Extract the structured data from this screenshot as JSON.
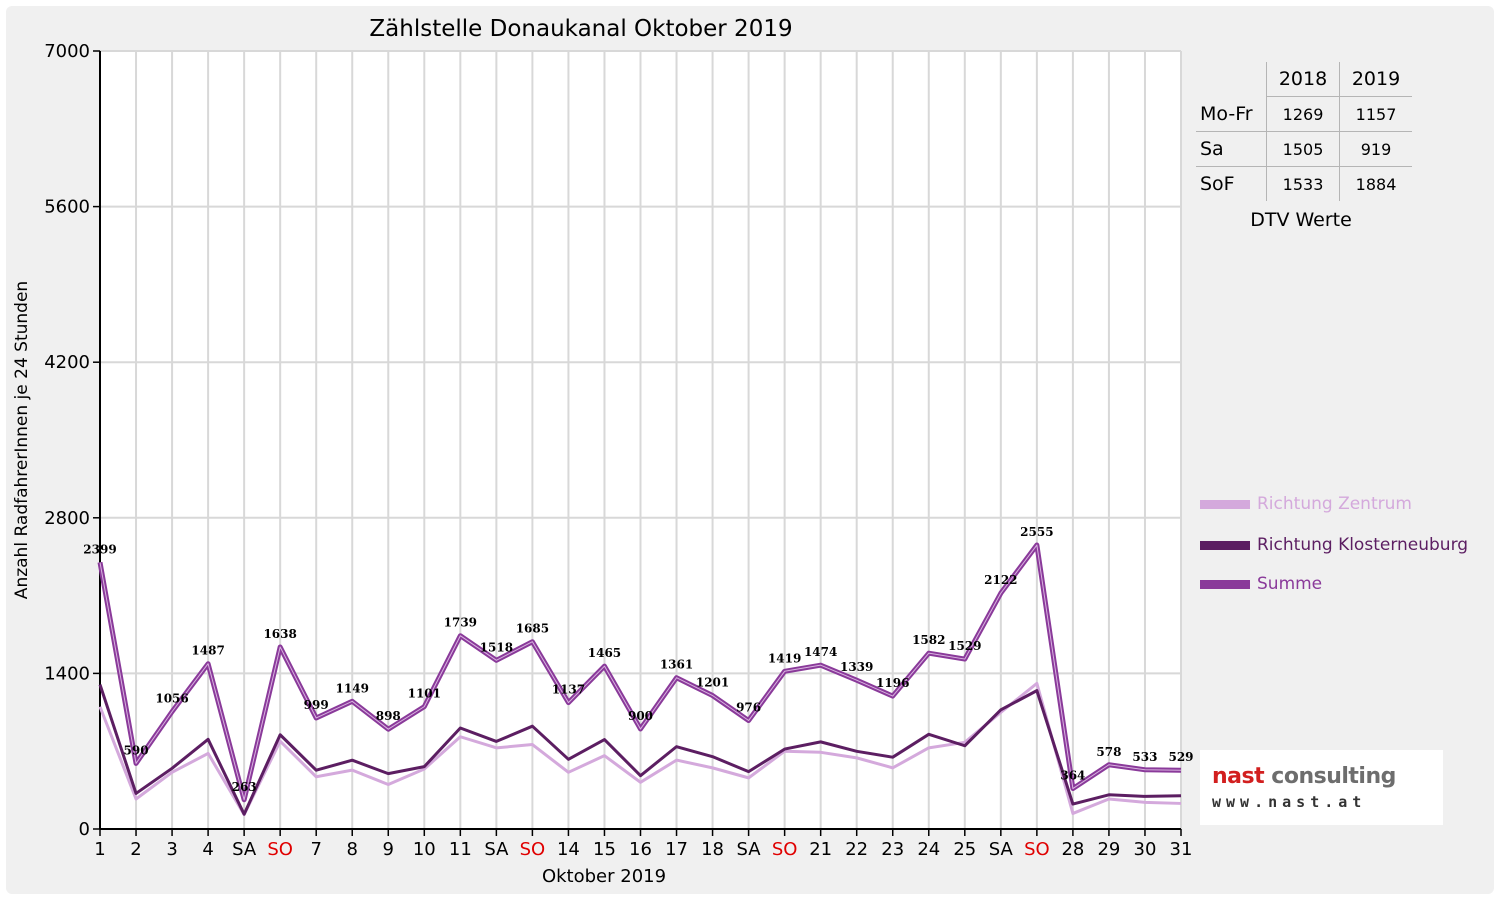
{
  "chart_data": {
    "type": "line",
    "title": "Zählstelle Donaukanal Oktober 2019",
    "xlabel": "Oktober 2019",
    "ylabel": "Anzahl RadfahrerInnen je 24 Stunden",
    "ylim": [
      0,
      7000
    ],
    "yticks": [
      0,
      1400,
      2800,
      4200,
      5600,
      7000
    ],
    "grid": true,
    "legend_position": "right",
    "categories": [
      "1",
      "2",
      "3",
      "4",
      "SA",
      "SO",
      "7",
      "8",
      "9",
      "10",
      "11",
      "SA",
      "SO",
      "14",
      "15",
      "16",
      "17",
      "18",
      "SA",
      "SO",
      "21",
      "22",
      "23",
      "24",
      "25",
      "SA",
      "SO",
      "28",
      "29",
      "30",
      "31"
    ],
    "highlight_categories": [
      5,
      12,
      19,
      26
    ],
    "series": [
      {
        "name": "Richtung Zentrum",
        "color": "#d4a9dc",
        "values": [
          1100,
          270,
          510,
          680,
          130,
          790,
          470,
          530,
          400,
          540,
          830,
          730,
          760,
          510,
          660,
          420,
          620,
          550,
          460,
          700,
          690,
          640,
          550,
          730,
          780,
          1050,
          1310,
          140,
          270,
          240,
          230
        ]
      },
      {
        "name": "Richtung Klosterneuburg",
        "color": "#5c1e62",
        "values": [
          1299,
          320,
          546,
          807,
          133,
          848,
          529,
          619,
          498,
          561,
          909,
          788,
          925,
          627,
          805,
          480,
          741,
          651,
          516,
          719,
          784,
          699,
          646,
          852,
          749,
          1072,
          1245,
          224,
          308,
          293,
          299
        ]
      },
      {
        "name": "Summe",
        "color": "#8a3a9a",
        "values": [
          2399,
          590,
          1056,
          1487,
          263,
          1638,
          999,
          1149,
          898,
          1101,
          1739,
          1518,
          1685,
          1137,
          1465,
          900,
          1361,
          1201,
          976,
          1419,
          1474,
          1339,
          1196,
          1582,
          1529,
          2122,
          2555,
          364,
          578,
          533,
          529
        ]
      }
    ]
  },
  "colors": {
    "axis_label": "#000000",
    "weekend_label": "#e00000",
    "grid": "#d8d8d8",
    "plot_bg": "#ffffff",
    "frame_bg": "#f0f0f0"
  },
  "dtv": {
    "headers": [
      "",
      "2018",
      "2019"
    ],
    "rows": [
      {
        "label": "Mo-Fr",
        "v2018": "1269",
        "v2019": "1157"
      },
      {
        "label": "Sa",
        "v2018": "1505",
        "v2019": "919"
      },
      {
        "label": "SoF",
        "v2018": "1533",
        "v2019": "1884"
      }
    ],
    "caption": "DTV Werte"
  },
  "logo": {
    "name_part1": "nast",
    "name_part2": " consulting",
    "url": "www.nast.at"
  }
}
